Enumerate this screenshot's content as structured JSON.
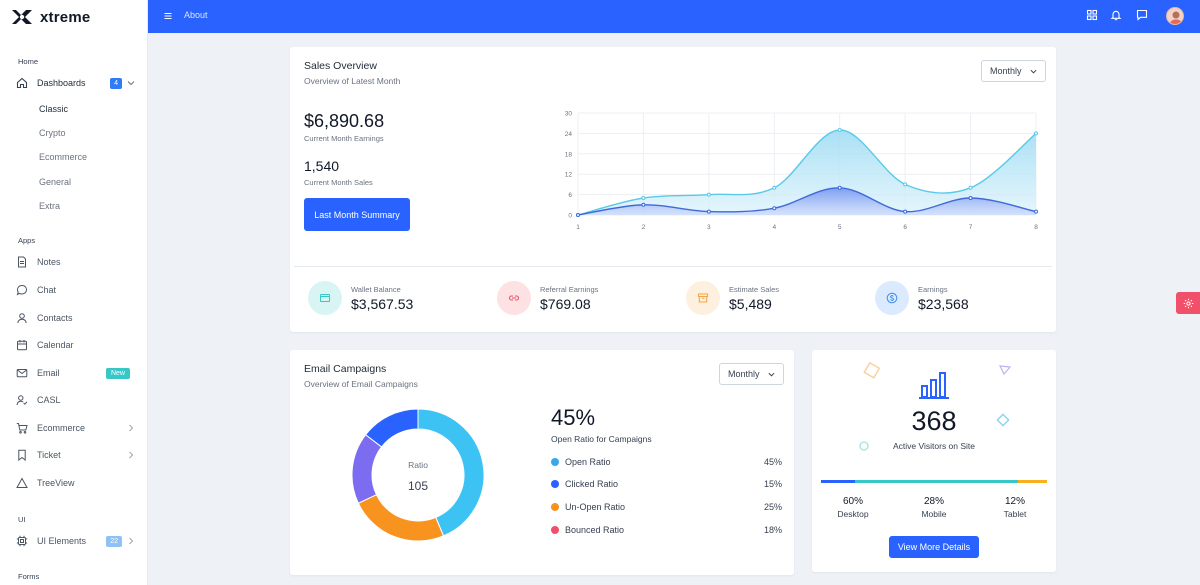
{
  "brand": {
    "name": "xtreme"
  },
  "sidebar": {
    "sections": {
      "home": "Home",
      "apps": "Apps",
      "ui": "UI",
      "forms": "Forms"
    },
    "dashboards": {
      "label": "Dashboards",
      "badge": "4"
    },
    "dash_sub": [
      "Classic",
      "Crypto",
      "Ecommerce",
      "General",
      "Extra"
    ],
    "apps": [
      {
        "label": "Notes"
      },
      {
        "label": "Chat"
      },
      {
        "label": "Contacts"
      },
      {
        "label": "Calendar"
      },
      {
        "label": "Email",
        "badge": "New"
      },
      {
        "label": "CASL"
      },
      {
        "label": "Ecommerce"
      },
      {
        "label": "Ticket"
      },
      {
        "label": "TreeView"
      }
    ],
    "ui_elements": {
      "label": "UI Elements",
      "badge": "22"
    }
  },
  "topbar": {
    "about": "About",
    "icons": [
      "grid-icon",
      "bell-icon",
      "message-icon"
    ]
  },
  "sales": {
    "title": "Sales Overview",
    "subtitle": "Overview of Latest Month",
    "select": "Monthly",
    "earnings_value": "$6,890.68",
    "earnings_label": "Current Month Earnings",
    "sales_value": "1,540",
    "sales_label": "Current Month Sales",
    "button": "Last Month Summary"
  },
  "chart_data": {
    "type": "area",
    "x": [
      1,
      2,
      3,
      4,
      5,
      6,
      7,
      8
    ],
    "series": [
      {
        "values": [
          0,
          5,
          6,
          8,
          25,
          9,
          8,
          24
        ],
        "color": "#5cc9e8"
      },
      {
        "values": [
          0,
          3,
          1,
          2,
          8,
          1,
          5,
          1
        ],
        "color": "#3f6ad8"
      }
    ],
    "yticks": [
      0,
      6,
      12,
      18,
      24,
      30
    ],
    "ylim": [
      0,
      30
    ],
    "grid": true
  },
  "stats": [
    {
      "label": "Wallet Balance",
      "value": "$3,567.53",
      "icon": "wallet-icon",
      "bg": "#d8f5f3",
      "color": "#38c7c6"
    },
    {
      "label": "Referral Earnings",
      "value": "$769.08",
      "icon": "link-icon",
      "bg": "#fde1e3",
      "color": "#f1506a"
    },
    {
      "label": "Estimate Sales",
      "value": "$5,489",
      "icon": "archive-icon",
      "bg": "#fdf0df",
      "color": "#f3a445"
    },
    {
      "label": "Earnings",
      "value": "$23,568",
      "icon": "dollar-icon",
      "bg": "#dbeafe",
      "color": "#3f8ee8"
    }
  ],
  "email": {
    "title": "Email Campaigns",
    "subtitle": "Overview of Email Campaigns",
    "select": "Monthly",
    "donut_label": "Ratio",
    "donut_value": "105",
    "percent": "45%",
    "percent_label": "Open Ratio for Campaigns",
    "legend": [
      {
        "name": "Open Ratio",
        "value": "45%",
        "pct": 45,
        "color": "#3aa8e8"
      },
      {
        "name": "Clicked Ratio",
        "value": "15%",
        "pct": 15,
        "color": "#2962ff"
      },
      {
        "name": "Un-Open Ratio",
        "value": "25%",
        "pct": 25,
        "color": "#f7931e"
      },
      {
        "name": "Bounced Ratio",
        "value": "18%",
        "pct": 18,
        "color": "#f0506a"
      }
    ]
  },
  "visitors": {
    "value": "368",
    "label": "Active Visitors on Site",
    "segments": [
      {
        "pct": "60%",
        "name": "Desktop",
        "color": "#2962ff"
      },
      {
        "pct": "28%",
        "name": "Mobile",
        "color": "#38c7c6"
      },
      {
        "pct": "12%",
        "name": "Tablet",
        "color": "#f7b11e"
      }
    ],
    "button": "View More Details"
  }
}
